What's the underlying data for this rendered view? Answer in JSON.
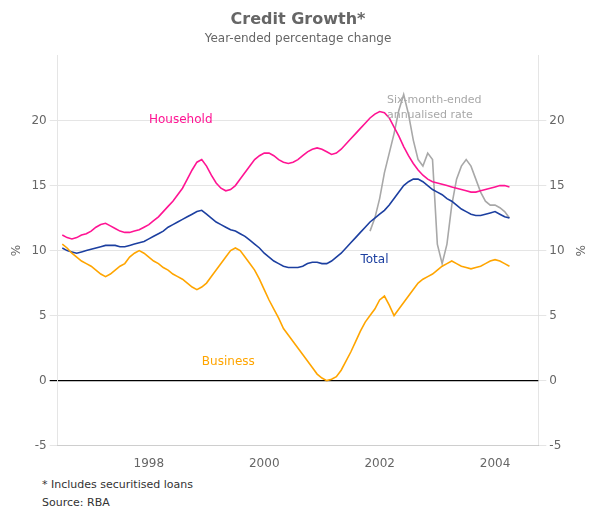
{
  "chart_data": {
    "type": "line",
    "title": "Credit Growth*",
    "subtitle": "Year-ended percentage change",
    "ylabel": "%",
    "y2label": "%",
    "footnotes": [
      "* Includes securitised loans",
      "Source: RBA"
    ],
    "x": [
      1996.5,
      1996.58333,
      1996.66666,
      1996.74999,
      1996.83332,
      1996.91665,
      1996.99998,
      1997.08331,
      1997.16664,
      1997.24997,
      1997.3333,
      1997.41663,
      1997.49996,
      1997.58329,
      1997.66662,
      1997.74995,
      1997.83328,
      1997.91661,
      1997.99994,
      1998.08327,
      1998.1666,
      1998.24993,
      1998.33326,
      1998.41659,
      1998.49992,
      1998.58325,
      1998.66658,
      1998.74991,
      1998.83324,
      1998.91657,
      1998.9999,
      1999.08323,
      1999.16656,
      1999.24989,
      1999.33322,
      1999.41655,
      1999.49988,
      1999.58321,
      1999.66654,
      1999.74987,
      1999.8332,
      1999.91653,
      1999.99986,
      2000.08319,
      2000.16652,
      2000.24985,
      2000.33318,
      2000.41651,
      2000.49984,
      2000.58317,
      2000.6665,
      2000.74983,
      2000.83316,
      2000.91649,
      2000.99982,
      2001.08315,
      2001.16648,
      2001.24981,
      2001.33314,
      2001.41647,
      2001.4998,
      2001.58313,
      2001.66646,
      2001.74979,
      2001.83312,
      2001.91645,
      2001.99978,
      2002.08311,
      2002.16644,
      2002.24977,
      2002.3331,
      2002.41643,
      2002.49976,
      2002.58309,
      2002.66642,
      2002.74975,
      2002.83308,
      2002.91641,
      2002.99974,
      2003.08307,
      2003.1664,
      2003.24973,
      2003.33306,
      2003.41639,
      2003.49972,
      2003.58305,
      2003.66638,
      2003.74971,
      2003.83304,
      2003.91637,
      2003.9997,
      2004.08303,
      2004.16636,
      2004.24969
    ],
    "series": [
      {
        "name": "Household",
        "color": "#FF1493",
        "values": [
          11.2,
          11.0,
          10.9,
          11.0,
          11.2,
          11.3,
          11.5,
          11.8,
          12.0,
          12.1,
          11.9,
          11.7,
          11.5,
          11.4,
          11.4,
          11.5,
          11.6,
          11.8,
          12.0,
          12.3,
          12.6,
          13.0,
          13.4,
          13.8,
          14.3,
          14.8,
          15.5,
          16.2,
          16.8,
          17.0,
          16.5,
          15.8,
          15.2,
          14.8,
          14.6,
          14.7,
          15.0,
          15.5,
          16.0,
          16.5,
          17.0,
          17.3,
          17.5,
          17.5,
          17.3,
          17.0,
          16.8,
          16.7,
          16.8,
          17.0,
          17.3,
          17.6,
          17.8,
          17.9,
          17.8,
          17.6,
          17.4,
          17.5,
          17.8,
          18.2,
          18.6,
          19.0,
          19.4,
          19.8,
          20.2,
          20.5,
          20.7,
          20.6,
          20.2,
          19.5,
          18.8,
          18.0,
          17.3,
          16.7,
          16.2,
          15.8,
          15.5,
          15.3,
          15.2,
          15.1,
          15.0,
          14.9,
          14.8,
          14.7,
          14.6,
          14.5,
          14.5,
          14.6,
          14.7,
          14.8,
          14.9,
          15.0,
          15.0,
          14.9
        ]
      },
      {
        "name": "Business",
        "color": "#FFA500",
        "values": [
          10.5,
          10.2,
          9.8,
          9.5,
          9.2,
          9.0,
          8.8,
          8.5,
          8.2,
          8.0,
          8.2,
          8.5,
          8.8,
          9.0,
          9.5,
          9.8,
          10.0,
          9.8,
          9.5,
          9.2,
          9.0,
          8.7,
          8.5,
          8.2,
          8.0,
          7.8,
          7.5,
          7.2,
          7.0,
          7.2,
          7.5,
          8.0,
          8.5,
          9.0,
          9.5,
          10.0,
          10.2,
          10.0,
          9.5,
          9.0,
          8.5,
          7.8,
          7.0,
          6.2,
          5.5,
          4.8,
          4.0,
          3.5,
          3.0,
          2.5,
          2.0,
          1.5,
          1.0,
          0.5,
          0.2,
          0.0,
          0.1,
          0.3,
          0.8,
          1.5,
          2.2,
          3.0,
          3.8,
          4.5,
          5.0,
          5.5,
          6.2,
          6.5,
          5.8,
          5.0,
          5.5,
          6.0,
          6.5,
          7.0,
          7.5,
          7.8,
          8.0,
          8.2,
          8.5,
          8.8,
          9.0,
          9.2,
          9.0,
          8.8,
          8.7,
          8.6,
          8.7,
          8.8,
          9.0,
          9.2,
          9.3,
          9.2,
          9.0,
          8.8
        ]
      },
      {
        "name": "Total",
        "color": "#1C3FA0",
        "values": [
          10.2,
          10.0,
          9.9,
          9.8,
          9.9,
          10.0,
          10.1,
          10.2,
          10.3,
          10.4,
          10.4,
          10.4,
          10.3,
          10.3,
          10.4,
          10.5,
          10.6,
          10.7,
          10.9,
          11.1,
          11.3,
          11.5,
          11.8,
          12.0,
          12.2,
          12.4,
          12.6,
          12.8,
          13.0,
          13.1,
          12.8,
          12.5,
          12.2,
          12.0,
          11.8,
          11.6,
          11.5,
          11.3,
          11.1,
          10.8,
          10.5,
          10.2,
          9.8,
          9.5,
          9.2,
          9.0,
          8.8,
          8.7,
          8.7,
          8.7,
          8.8,
          9.0,
          9.1,
          9.1,
          9.0,
          9.0,
          9.2,
          9.5,
          9.8,
          10.2,
          10.6,
          11.0,
          11.4,
          11.8,
          12.2,
          12.5,
          12.8,
          13.1,
          13.5,
          14.0,
          14.5,
          15.0,
          15.3,
          15.5,
          15.5,
          15.3,
          15.0,
          14.7,
          14.5,
          14.3,
          14.0,
          13.8,
          13.5,
          13.2,
          13.0,
          12.8,
          12.7,
          12.7,
          12.8,
          12.9,
          13.0,
          12.8,
          12.6,
          12.5
        ]
      },
      {
        "name": "Six-month-ended\nannualised rate",
        "color": "#A8A8A8",
        "values": [
          null,
          null,
          null,
          null,
          null,
          null,
          null,
          null,
          null,
          null,
          null,
          null,
          null,
          null,
          null,
          null,
          null,
          null,
          null,
          null,
          null,
          null,
          null,
          null,
          null,
          null,
          null,
          null,
          null,
          null,
          null,
          null,
          null,
          null,
          null,
          null,
          null,
          null,
          null,
          null,
          null,
          null,
          null,
          null,
          null,
          null,
          null,
          null,
          null,
          null,
          null,
          null,
          null,
          null,
          null,
          null,
          null,
          null,
          null,
          null,
          null,
          null,
          null,
          null,
          11.5,
          12.5,
          14.0,
          16.0,
          17.5,
          19.0,
          20.8,
          22.0,
          20.5,
          18.5,
          17.0,
          16.5,
          17.5,
          17.0,
          10.5,
          9.0,
          10.5,
          13.5,
          15.5,
          16.5,
          17.0,
          16.5,
          15.5,
          14.5,
          13.8,
          13.5,
          13.5,
          13.3,
          13.0,
          12.5
        ]
      }
    ],
    "xlim": [
      1996.42,
      2004.75
    ],
    "xticks": [
      1998,
      2000,
      2002,
      2004
    ],
    "ylim": [
      -5,
      25
    ],
    "yticks": [
      -5,
      0,
      5,
      10,
      15,
      20
    ],
    "y2lim": [
      -5,
      25
    ],
    "y2ticks": [
      -5,
      0,
      5,
      10,
      15,
      20
    ],
    "grid": true
  }
}
